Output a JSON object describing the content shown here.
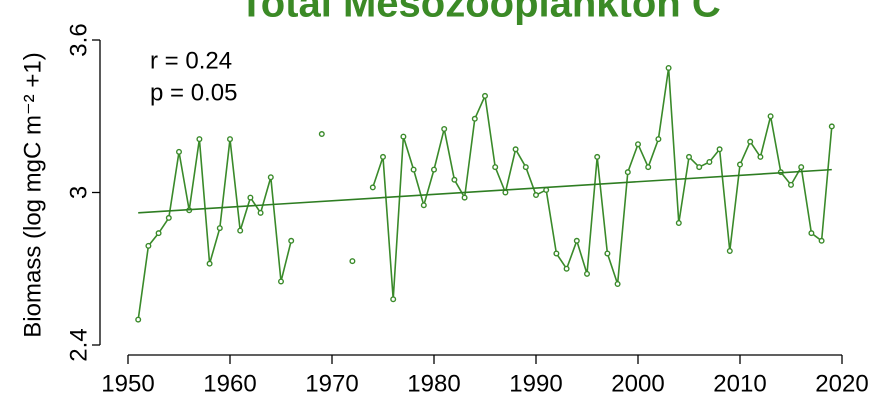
{
  "chart_data": {
    "type": "line",
    "title": "Total Mesozooplankton C",
    "y_label": "Biomass (log mgC m⁻² +1)",
    "annotations": [
      "r = 0.24",
      "p = 0.05"
    ],
    "x": [
      1951,
      1952,
      1953,
      1954,
      1955,
      1956,
      1957,
      1958,
      1959,
      1960,
      1961,
      1962,
      1963,
      1964,
      1965,
      1966,
      1967,
      1968,
      1969,
      1970,
      1971,
      1972,
      1973,
      1974,
      1975,
      1976,
      1977,
      1978,
      1979,
      1980,
      1981,
      1982,
      1983,
      1984,
      1985,
      1986,
      1987,
      1988,
      1989,
      1990,
      1991,
      1992,
      1993,
      1994,
      1995,
      1996,
      1997,
      1998,
      1999,
      2000,
      2001,
      2002,
      2003,
      2004,
      2005,
      2006,
      2007,
      2008,
      2009,
      2010,
      2011,
      2012,
      2013,
      2014,
      2015,
      2016,
      2017,
      2018,
      2019
    ],
    "series": [
      {
        "name": "Total Mesozooplankton C",
        "color": "#3a8a2a",
        "values": [
          2.5,
          2.79,
          2.84,
          2.9,
          3.16,
          2.93,
          3.21,
          2.72,
          2.86,
          3.21,
          2.85,
          2.98,
          2.92,
          3.06,
          2.65,
          2.81,
          null,
          null,
          3.23,
          null,
          null,
          2.73,
          null,
          3.02,
          3.14,
          2.58,
          3.22,
          3.09,
          2.95,
          3.09,
          3.25,
          3.05,
          2.98,
          3.29,
          3.38,
          3.1,
          3.0,
          3.17,
          3.1,
          2.99,
          3.01,
          2.76,
          2.7,
          2.81,
          2.68,
          3.14,
          2.76,
          2.64,
          3.08,
          3.19,
          3.1,
          3.21,
          3.49,
          2.88,
          3.14,
          3.1,
          3.12,
          3.17,
          2.77,
          3.11,
          3.2,
          3.14,
          3.3,
          3.08,
          3.03,
          3.1,
          2.84,
          2.81,
          3.26
        ]
      }
    ],
    "trend": {
      "color": "#2e7d22",
      "x": [
        1951,
        2019
      ],
      "values": [
        2.92,
        3.09
      ]
    },
    "title_color": "#3b8a26",
    "xlim": [
      1950,
      2020
    ],
    "ylim": [
      2.4,
      3.6
    ],
    "xticks": [
      1950,
      1960,
      1970,
      1980,
      1990,
      2000,
      2010,
      2020
    ],
    "yticks": [
      2.4,
      3,
      3.6
    ]
  }
}
